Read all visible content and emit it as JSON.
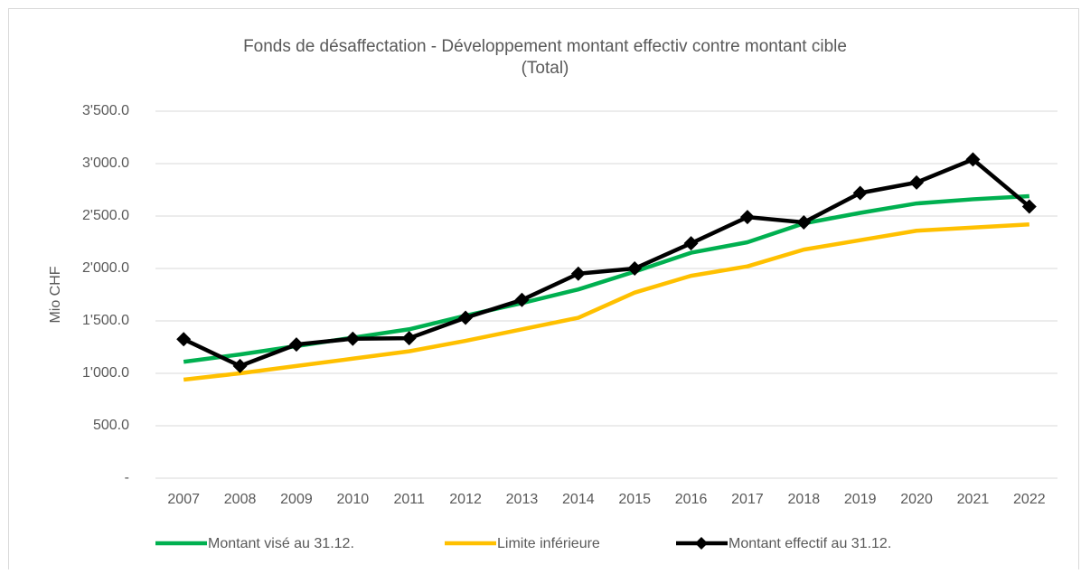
{
  "chart_data": {
    "type": "line",
    "title": [
      "Fonds de désaffectation - Développement montant effectiv contre montant cible",
      "(Total)"
    ],
    "y_label": "Mio CHF",
    "categories": [
      "2007",
      "2008",
      "2009",
      "2010",
      "2011",
      "2012",
      "2013",
      "2014",
      "2015",
      "2016",
      "2017",
      "2018",
      "2019",
      "2020",
      "2021",
      "2022"
    ],
    "series": [
      {
        "name": "Montant visé au 31.12.",
        "color": "#00b050",
        "marker": false,
        "values": [
          1110,
          1180,
          1260,
          1340,
          1420,
          1550,
          1670,
          1800,
          1970,
          2150,
          2250,
          2430,
          2530,
          2620,
          2660,
          2690
        ]
      },
      {
        "name": "Limite inférieure",
        "color": "#ffc000",
        "marker": false,
        "values": [
          940,
          1000,
          1070,
          1140,
          1210,
          1310,
          1420,
          1530,
          1770,
          1930,
          2020,
          2180,
          2270,
          2360,
          2390,
          2420
        ]
      },
      {
        "name": "Montant effectif au 31.12.",
        "color": "#000000",
        "marker": true,
        "values": [
          1325,
          1070,
          1275,
          1330,
          1335,
          1530,
          1700,
          1950,
          2000,
          2240,
          2490,
          2440,
          2720,
          2820,
          3040,
          2590
        ]
      }
    ],
    "ylim": [
      0,
      3500
    ],
    "yticks": [
      {
        "value": 0,
        "label": "-"
      },
      {
        "value": 500,
        "label": "500.0"
      },
      {
        "value": 1000,
        "label": "1'000.0"
      },
      {
        "value": 1500,
        "label": "1'500.0"
      },
      {
        "value": 2000,
        "label": "2'000.0"
      },
      {
        "value": 2500,
        "label": "2'500.0"
      },
      {
        "value": 3000,
        "label": "3'000.0"
      },
      {
        "value": 3500,
        "label": "3'500.0"
      }
    ],
    "grid": true,
    "legend": "bottom"
  }
}
